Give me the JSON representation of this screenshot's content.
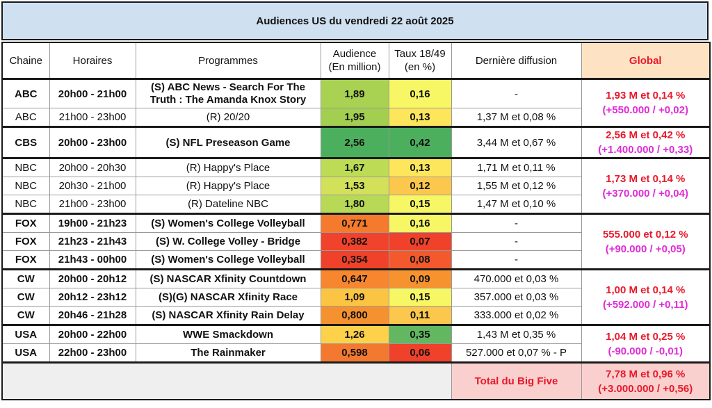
{
  "title": "Audiences US du vendredi 22 août 2025",
  "headers": {
    "channel": "Chaine",
    "hours": "Horaires",
    "programs": "Programmes",
    "audience_l1": "Audience",
    "audience_l2": "(En million)",
    "rate_l1": "Taux 18/49",
    "rate_l2": "(en %)",
    "last": "Dernière diffusion",
    "global": "Global"
  },
  "rows": [
    {
      "channel": "ABC",
      "hours": "20h00 - 21h00",
      "program": "(S) ABC News - Search For The Truth : The Amanda Knox Story",
      "audience": "1,89",
      "rate": "0,16",
      "last": "-"
    },
    {
      "channel": "ABC",
      "hours": "21h00 - 23h00",
      "program": "(R) 20/20",
      "audience": "1,95",
      "rate": "0,13",
      "last": "1,37 M et 0,08 %"
    },
    {
      "channel": "CBS",
      "hours": "20h00 - 23h00",
      "program": "(S) NFL Preseason Game",
      "audience": "2,56",
      "rate": "0,42",
      "last": "3,44 M et 0,67 %"
    },
    {
      "channel": "NBC",
      "hours": "20h00 - 20h30",
      "program": "(R) Happy's Place",
      "audience": "1,67",
      "rate": "0,13",
      "last": "1,71 M et 0,11 %"
    },
    {
      "channel": "NBC",
      "hours": "20h30 - 21h00",
      "program": "(R) Happy's Place",
      "audience": "1,53",
      "rate": "0,12",
      "last": "1,55 M et 0,12 %"
    },
    {
      "channel": "NBC",
      "hours": "21h00 - 23h00",
      "program": "(R) Dateline NBC",
      "audience": "1,80",
      "rate": "0,15",
      "last": "1,47 M et 0,10 %"
    },
    {
      "channel": "FOX",
      "hours": "19h00 - 21h23",
      "program": "(S) Women's College Volleyball",
      "audience": "0,771",
      "rate": "0,16",
      "last": "-"
    },
    {
      "channel": "FOX",
      "hours": "21h23 - 21h43",
      "program": "(S) W. College Volley - Bridge",
      "audience": "0,382",
      "rate": "0,07",
      "last": "-"
    },
    {
      "channel": "FOX",
      "hours": "21h43 - 00h00",
      "program": "(S) Women's College Volleyball",
      "audience": "0,354",
      "rate": "0,08",
      "last": "-"
    },
    {
      "channel": "CW",
      "hours": "20h00 - 20h12",
      "program": "(S) NASCAR Xfinity Countdown",
      "audience": "0,647",
      "rate": "0,09",
      "last": "470.000 et 0,03 %"
    },
    {
      "channel": "CW",
      "hours": "20h12 - 23h12",
      "program": "(S)(G) NASCAR Xfinity Race",
      "audience": "1,09",
      "rate": "0,15",
      "last": "357.000 et 0,03 %"
    },
    {
      "channel": "CW",
      "hours": "20h46 - 21h28",
      "program": "(S) NASCAR Xfinity Rain Delay",
      "audience": "0,800",
      "rate": "0,11",
      "last": "333.000 et 0,02 %"
    },
    {
      "channel": "USA",
      "hours": "20h00 - 22h00",
      "program": "WWE Smackdown",
      "audience": "1,26",
      "rate": "0,35",
      "last": "1,43 M et 0,35 %"
    },
    {
      "channel": "USA",
      "hours": "22h00 - 23h00",
      "program": "The Rainmaker",
      "audience": "0,598",
      "rate": "0,06",
      "last": "527.000 et 0,07 % - P"
    }
  ],
  "globals": [
    {
      "main": "1,93 M et 0,14 %",
      "sub": "(+550.000 / +0,02)"
    },
    {
      "main": "2,56 M et 0,42 %",
      "sub": "(+1.400.000 / +0,33)"
    },
    {
      "main": "1,73 M et 0,14 %",
      "sub": "(+370.000 / +0,04)"
    },
    {
      "main": "555.000 et 0,12 %",
      "sub": "(+90.000 / +0,05)"
    },
    {
      "main": "1,00 M et 0,14 %",
      "sub": "(+592.000 / +0,11)"
    },
    {
      "main": "1,04 M et 0,25 %",
      "sub": "(-90.000 / -0,01)"
    }
  ],
  "total": {
    "label": "Total du Big Five",
    "main": "7,78 M et 0,96 %",
    "sub": "(+3.000.000 / +0,56)"
  },
  "colors": {
    "audience": [
      "#a9d152",
      "#a3cf51",
      "#4caf5d",
      "#bedb56",
      "#d2e05a",
      "#b8d955",
      "#f47b2d",
      "#f1432b",
      "#f0412a",
      "#f7862f",
      "#fcc443",
      "#f6912f",
      "#fdd14a",
      "#f47930"
    ],
    "rate": [
      "#f7f765",
      "#fde65c",
      "#4caf5d",
      "#fde65c",
      "#fbc84d",
      "#f7f765",
      "#f7f765",
      "#f0412a",
      "#f3592c",
      "#f7932f",
      "#f7f765",
      "#fbc84d",
      "#63b760",
      "#f0412a"
    ]
  }
}
